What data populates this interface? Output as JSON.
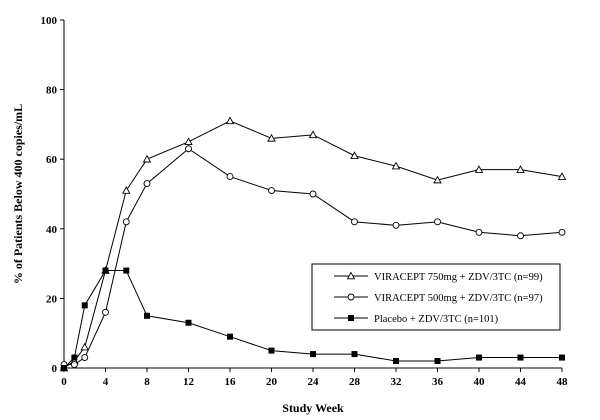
{
  "chart_data": {
    "type": "line",
    "xlabel": "Study Week",
    "ylabel": "% of Patients Below 400 copies/mL",
    "xlim": [
      0,
      48
    ],
    "ylim": [
      0,
      100
    ],
    "x_ticks": [
      0,
      4,
      8,
      12,
      16,
      20,
      24,
      28,
      32,
      36,
      40,
      44,
      48
    ],
    "y_ticks": [
      0,
      20,
      40,
      60,
      80,
      100
    ],
    "grid": false,
    "legend_position": "bottom-right",
    "series": [
      {
        "name": "VIRACEPT 750mg + ZDV/3TC (n=99)",
        "marker": "triangle-open",
        "x": [
          0,
          1,
          2,
          4,
          6,
          8,
          12,
          16,
          20,
          24,
          28,
          32,
          36,
          40,
          44,
          48
        ],
        "values": [
          0,
          2,
          6,
          28,
          51,
          60,
          65,
          71,
          66,
          67,
          61,
          58,
          54,
          57,
          57,
          55
        ]
      },
      {
        "name": "VIRACEPT 500mg + ZDV/3TC (n=97)",
        "marker": "circle-open",
        "x": [
          0,
          1,
          2,
          4,
          6,
          8,
          12,
          16,
          20,
          24,
          28,
          32,
          36,
          40,
          44,
          48
        ],
        "values": [
          1,
          1,
          3,
          16,
          42,
          53,
          63,
          55,
          51,
          50,
          42,
          41,
          42,
          39,
          38,
          39
        ]
      },
      {
        "name": "Placebo + ZDV/3TC (n=101)",
        "marker": "square-filled",
        "x": [
          0,
          1,
          2,
          4,
          6,
          8,
          12,
          16,
          20,
          24,
          28,
          32,
          36,
          40,
          44,
          48
        ],
        "values": [
          0,
          3,
          18,
          28,
          28,
          15,
          13,
          9,
          5,
          4,
          4,
          2,
          2,
          3,
          3,
          3
        ]
      }
    ]
  }
}
